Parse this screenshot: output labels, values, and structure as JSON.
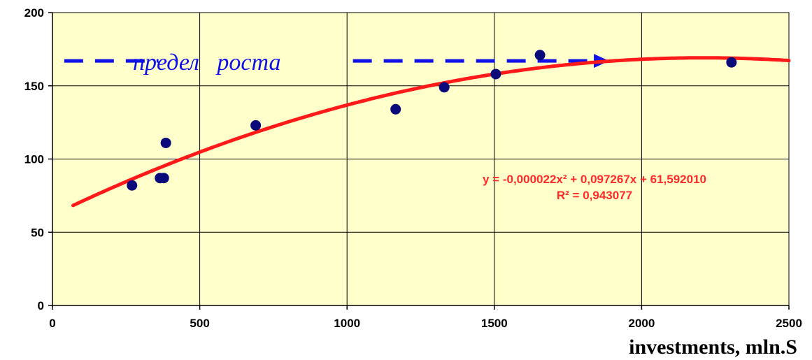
{
  "chart_data": {
    "type": "scatter",
    "title": "",
    "xlabel": "investments, mln.S",
    "ylabel": "",
    "xlim": [
      0,
      2500
    ],
    "ylim": [
      0,
      200
    ],
    "x_ticks": [
      "0",
      "500",
      "1000",
      "1500",
      "2000",
      "2500"
    ],
    "y_ticks": [
      "0",
      "50",
      "100",
      "150",
      "200"
    ],
    "grid": true,
    "background_color": "#ffffcc",
    "points_color": "#0a0a7a",
    "trend_color": "#ff1a1a",
    "limit_color": "#1010e8",
    "points": [
      {
        "x": 270,
        "y": 82
      },
      {
        "x": 365,
        "y": 87
      },
      {
        "x": 378,
        "y": 87
      },
      {
        "x": 385,
        "y": 111
      },
      {
        "x": 690,
        "y": 123
      },
      {
        "x": 1165,
        "y": 134
      },
      {
        "x": 1330,
        "y": 149
      },
      {
        "x": 1505,
        "y": 158
      },
      {
        "x": 1655,
        "y": 171
      },
      {
        "x": 2305,
        "y": 166
      }
    ],
    "trendline": {
      "type": "polynomial",
      "a": -2.2e-05,
      "b": 0.097267,
      "c": 61.59201,
      "x_range": [
        70,
        2500
      ],
      "equation": "y = -0,000022x² + 0,097267x + 61,592010",
      "r_squared": "R² = 0,943077"
    },
    "growth_limit": {
      "label": "предел   роста",
      "y": 167,
      "x_start": 40,
      "x_end": 1890
    }
  }
}
